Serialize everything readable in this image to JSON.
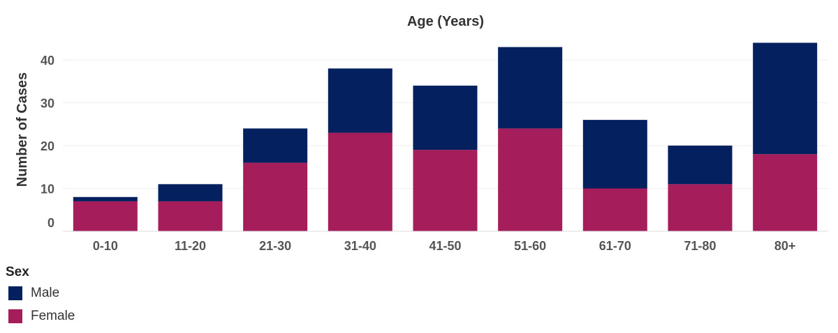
{
  "chart_data": {
    "type": "bar",
    "stacked": true,
    "title": "Age  (Years)",
    "xlabel": "",
    "ylabel": "Number of Cases",
    "categories": [
      "0-10",
      "11-20",
      "21-30",
      "31-40",
      "41-50",
      "51-60",
      "61-70",
      "71-80",
      "80+"
    ],
    "series": [
      {
        "name": "Female",
        "color": "#A51D5A",
        "values": [
          7,
          7,
          16,
          23,
          19,
          24,
          10,
          11,
          18
        ]
      },
      {
        "name": "Male",
        "color": "#04205F",
        "values": [
          1,
          4,
          8,
          15,
          15,
          19,
          16,
          9,
          26
        ]
      }
    ],
    "ylim": [
      0,
      45
    ],
    "yticks": [
      "0",
      "10",
      "20",
      "30",
      "40"
    ],
    "grid": true,
    "legend": {
      "title": "Sex",
      "position": "bottom-left",
      "order": [
        "Male",
        "Female"
      ]
    }
  }
}
